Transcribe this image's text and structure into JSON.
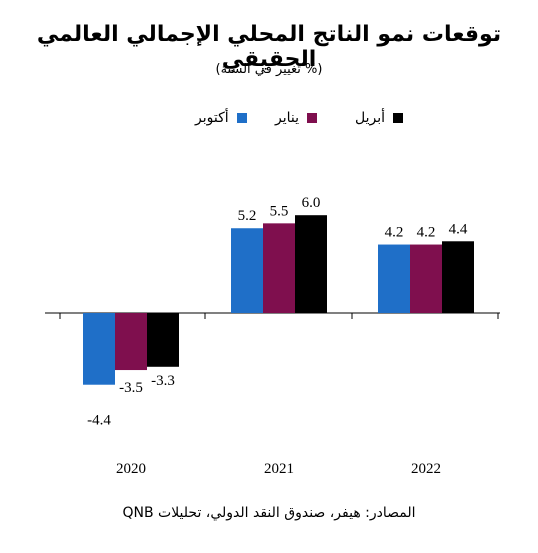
{
  "title": "توقعات نمو الناتج المحلي الإجمالي العالمي الحقيقي",
  "subtitle": "(% تغيير في السنة)",
  "source": "المصادر: هيفر، صندوق النقد الدولي، تحليلات QNB",
  "colors": {
    "oct": "#1f6fc8",
    "jan": "#7f0f4e",
    "apr": "#000000"
  },
  "chart_data": {
    "type": "bar",
    "categories": [
      "2020",
      "2021",
      "2022"
    ],
    "series": [
      {
        "name": "أكتوبر",
        "values": [
          -4.4,
          5.2,
          4.2
        ]
      },
      {
        "name": "يناير",
        "values": [
          -3.5,
          5.5,
          4.2
        ]
      },
      {
        "name": "أبريل",
        "values": [
          -3.3,
          6.0,
          4.4
        ]
      }
    ],
    "legend": "top",
    "grid": false
  }
}
